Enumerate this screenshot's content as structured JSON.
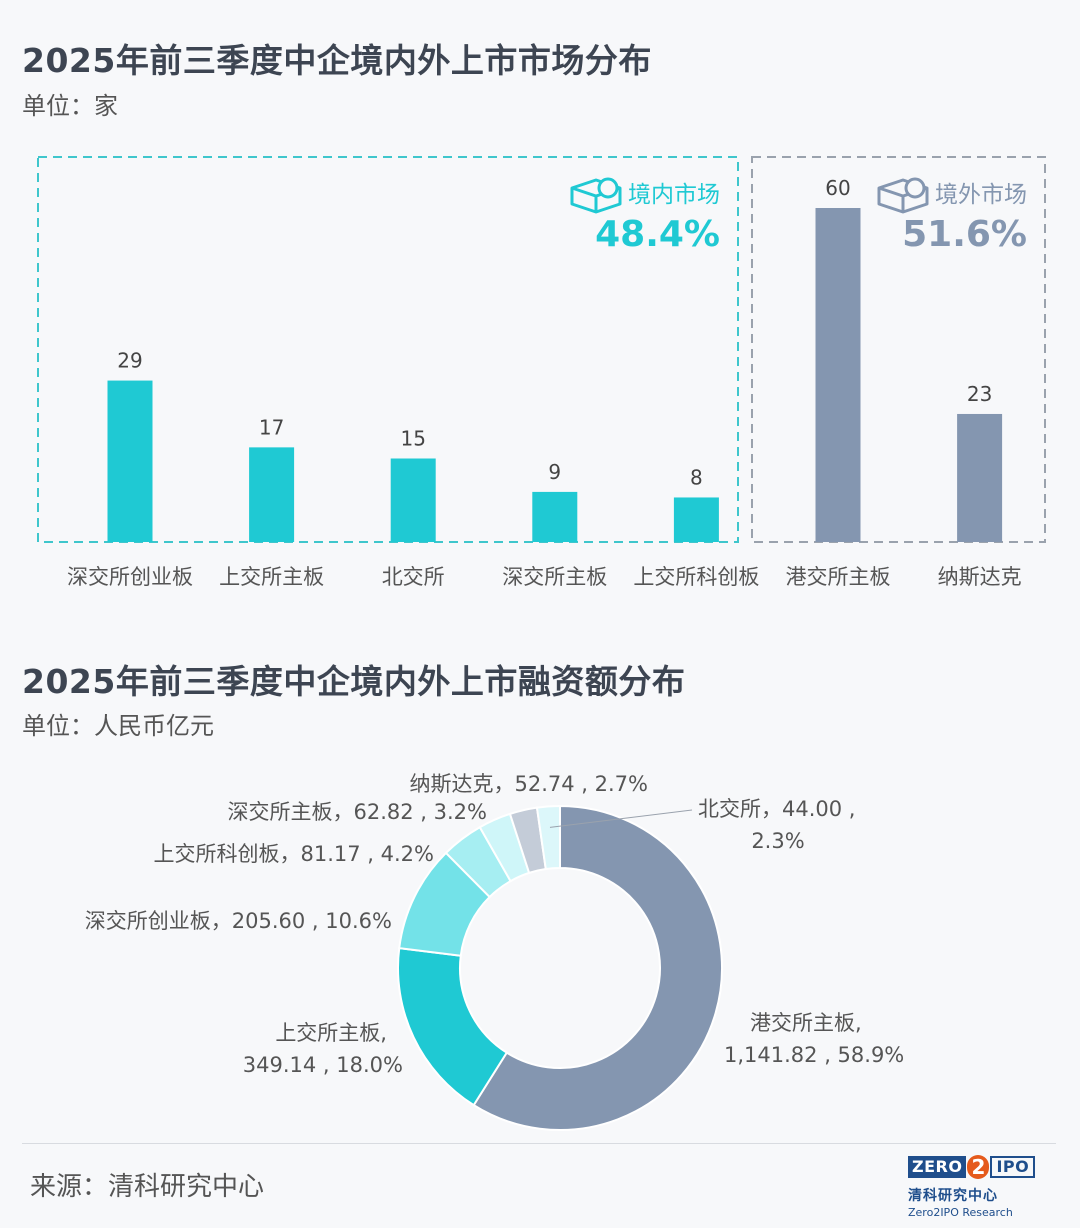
{
  "bar_section": {
    "title": "2025年前三季度中企境内外上市市场分布",
    "unit": "单位：家"
  },
  "pie_section": {
    "title": "2025年前三季度中企境内外上市融资额分布",
    "unit": "单位：人民币亿元"
  },
  "chart_data": [
    {
      "type": "bar",
      "title": "2025年前三季度中企境内外上市市场分布",
      "unit": "单位：家",
      "categories": [
        "深交所创业板",
        "上交所主板",
        "北交所",
        "深交所主板",
        "上交所科创板",
        "港交所主板",
        "纳斯达克"
      ],
      "values": [
        29,
        17,
        15,
        9,
        8,
        60,
        23
      ],
      "data_labels": [
        "29",
        "17",
        "15",
        "9",
        "8",
        "60",
        "23"
      ],
      "ylim": [
        0,
        60
      ],
      "grid": false,
      "groups": [
        {
          "label": "境内市场",
          "share": "48.4%",
          "categories": [
            "深交所创业板",
            "上交所主板",
            "北交所",
            "深交所主板",
            "上交所科创板"
          ],
          "color": "#1fc9d3"
        },
        {
          "label": "境外市场",
          "share": "51.6%",
          "categories": [
            "港交所主板",
            "纳斯达克"
          ],
          "color": "#8496b0"
        }
      ]
    },
    {
      "type": "pie",
      "title": "2025年前三季度中企境内外上市融资额分布",
      "unit": "单位：人民币亿元",
      "donut": true,
      "slices": [
        {
          "label": "港交所主板",
          "value": 1141.82,
          "percent": 58.9,
          "text": [
            "港交所主板,",
            "1,141.82 , 58.9%"
          ],
          "color": "#8496b0"
        },
        {
          "label": "上交所主板",
          "value": 349.14,
          "percent": 18.0,
          "text": [
            "上交所主板,",
            "349.14 , 18.0%"
          ],
          "color": "#1fc9d3"
        },
        {
          "label": "深交所创业板",
          "value": 205.6,
          "percent": 10.6,
          "text": [
            "深交所创业板，205.60 , 10.6%"
          ],
          "color": "#73e2e8"
        },
        {
          "label": "上交所科创板",
          "value": 81.17,
          "percent": 4.2,
          "text": [
            "上交所科创板，81.17 , 4.2%"
          ],
          "color": "#a6eef2"
        },
        {
          "label": "深交所主板",
          "value": 62.82,
          "percent": 3.2,
          "text": [
            "深交所主板，62.82 , 3.2%"
          ],
          "color": "#cff6f9"
        },
        {
          "label": "纳斯达克",
          "value": 52.74,
          "percent": 2.7,
          "text": [
            "纳斯达克，52.74 , 2.7%"
          ],
          "color": "#c4ccd8"
        },
        {
          "label": "北交所",
          "value": 44.0,
          "percent": 2.3,
          "text": [
            "北交所，44.00 ,",
            "2.3%"
          ],
          "color": "#dcf7fa"
        }
      ]
    }
  ],
  "footer": {
    "source": "来源：清科研究中心",
    "logo_zero": "ZERO",
    "logo_two": "2",
    "logo_ipo": "IPO",
    "logo_cn": "清科研究中心",
    "logo_en": "Zero2IPO Research"
  }
}
